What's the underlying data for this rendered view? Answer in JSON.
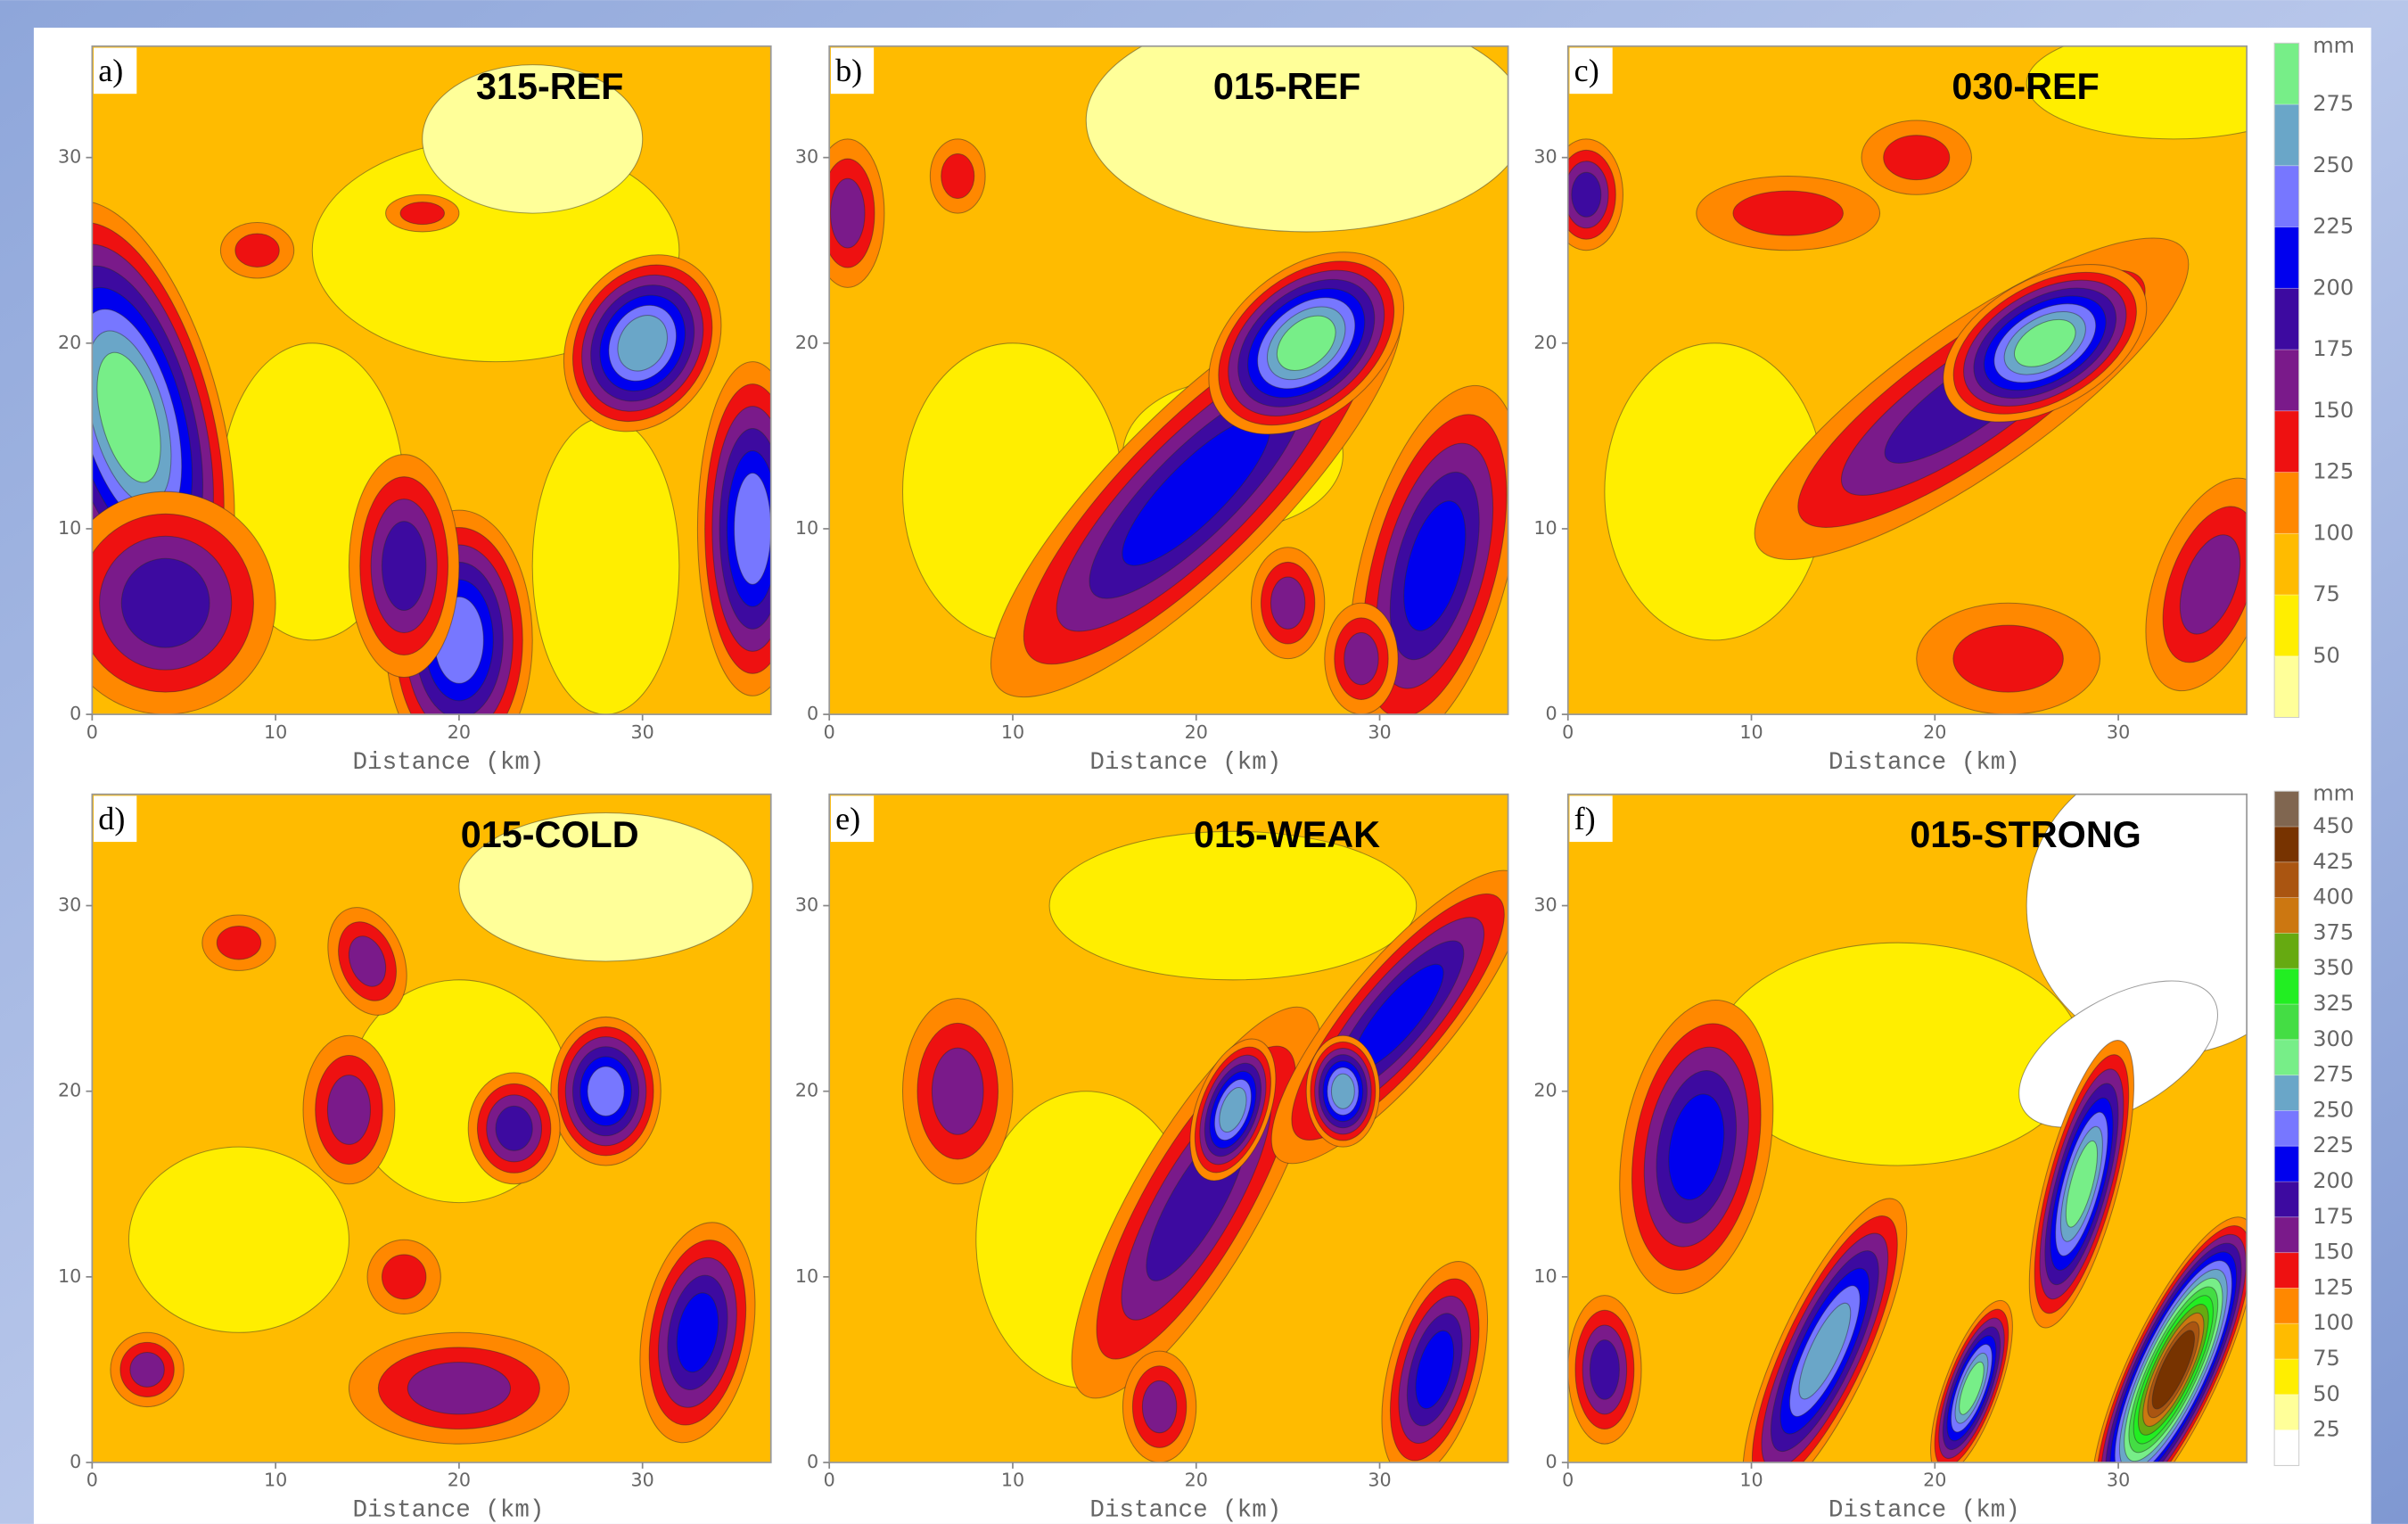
{
  "chart_data": [
    {
      "type": "contour",
      "label": "a)",
      "title": "315-REF",
      "xlabel": "Distance (km)",
      "xlim": [
        0,
        37
      ],
      "ylim": [
        0,
        36
      ],
      "xticks": [
        0,
        10,
        20,
        30
      ],
      "yticks": [
        0,
        10,
        20,
        30
      ]
    },
    {
      "type": "contour",
      "label": "b)",
      "title": "015-REF",
      "xlabel": "Distance (km)",
      "xlim": [
        0,
        37
      ],
      "ylim": [
        0,
        36
      ],
      "xticks": [
        0,
        10,
        20,
        30
      ],
      "yticks": [
        0,
        10,
        20,
        30
      ]
    },
    {
      "type": "contour",
      "label": "c)",
      "title": "030-REF",
      "xlabel": "Distance (km)",
      "xlim": [
        0,
        37
      ],
      "ylim": [
        0,
        36
      ],
      "xticks": [
        0,
        10,
        20,
        30
      ],
      "yticks": [
        0,
        10,
        20,
        30
      ],
      "colorbar": {
        "unit": "mm",
        "levels": [
          50,
          75,
          100,
          125,
          150,
          175,
          200,
          225,
          250,
          275
        ],
        "colors": [
          "#ffff99",
          "#ffee00",
          "#ffbb00",
          "#ff8800",
          "#ee1111",
          "#7a1a8a",
          "#3d0aa0",
          "#0000ee",
          "#7777ff",
          "#6aa6c8",
          "#77ee88"
        ]
      }
    },
    {
      "type": "contour",
      "label": "d)",
      "title": "015-COLD",
      "xlabel": "Distance (km)",
      "xlim": [
        0,
        37
      ],
      "ylim": [
        0,
        36
      ],
      "xticks": [
        0,
        10,
        20,
        30
      ],
      "yticks": [
        0,
        10,
        20,
        30
      ]
    },
    {
      "type": "contour",
      "label": "e)",
      "title": "015-WEAK",
      "xlabel": "Distance (km)",
      "xlim": [
        0,
        37
      ],
      "ylim": [
        0,
        36
      ],
      "xticks": [
        0,
        10,
        20,
        30
      ],
      "yticks": [
        0,
        10,
        20,
        30
      ]
    },
    {
      "type": "contour",
      "label": "f)",
      "title": "015-STRONG",
      "xlabel": "Distance (km)",
      "xlim": [
        0,
        37
      ],
      "ylim": [
        0,
        36
      ],
      "xticks": [
        0,
        10,
        20,
        30
      ],
      "yticks": [
        0,
        10,
        20,
        30
      ],
      "colorbar": {
        "unit": "mm",
        "levels": [
          25,
          50,
          75,
          100,
          125,
          150,
          175,
          200,
          225,
          250,
          275,
          300,
          325,
          350,
          375,
          400,
          425,
          450
        ],
        "colors": [
          "#ffffff",
          "#ffff99",
          "#ffee00",
          "#ffbb00",
          "#ff8800",
          "#ee1111",
          "#7a1a8a",
          "#3d0aa0",
          "#0000ee",
          "#7777ff",
          "#6aa6c8",
          "#77ee88",
          "#44dd44",
          "#22ee22",
          "#66aa11",
          "#cc7711",
          "#aa5511",
          "#773300",
          "#806650"
        ]
      }
    }
  ]
}
